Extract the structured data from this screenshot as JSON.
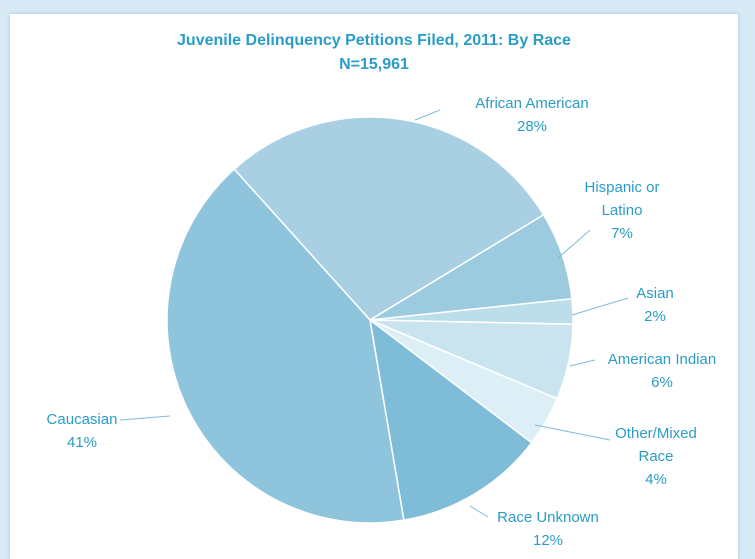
{
  "chart_data": {
    "type": "pie",
    "title": "Juvenile Delinquency Petitions Filed, 2011: By Race",
    "subtitle": "N=15,961",
    "categories": [
      "African American",
      "Hispanic or Latino",
      "Asian",
      "American Indian",
      "Other/Mixed Race",
      "Race Unknown",
      "Caucasian"
    ],
    "values": [
      28,
      7,
      2,
      6,
      4,
      12,
      41
    ],
    "value_labels": [
      "28%",
      "7%",
      "2%",
      "6%",
      "4%",
      "12%",
      "41%"
    ],
    "colors": [
      "#a9cfe3",
      "#9ccbe0",
      "#bcdeeb",
      "#c9e4ef",
      "#dceff6",
      "#7fbcd8",
      "#8ec5dd"
    ]
  }
}
